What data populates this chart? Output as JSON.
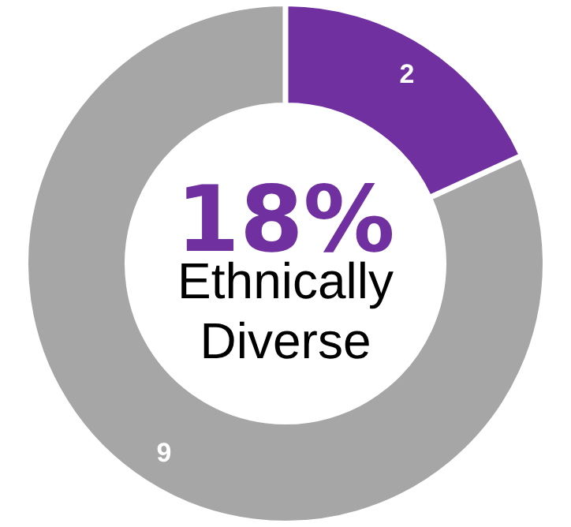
{
  "chart_data": {
    "type": "donut",
    "categories": [
      null,
      null
    ],
    "values": [
      2,
      9
    ],
    "colors": [
      "#7030a0",
      "#a6a6a6"
    ],
    "data_labels": true,
    "annotations": [
      "18%",
      "Ethnically Diverse"
    ]
  }
}
